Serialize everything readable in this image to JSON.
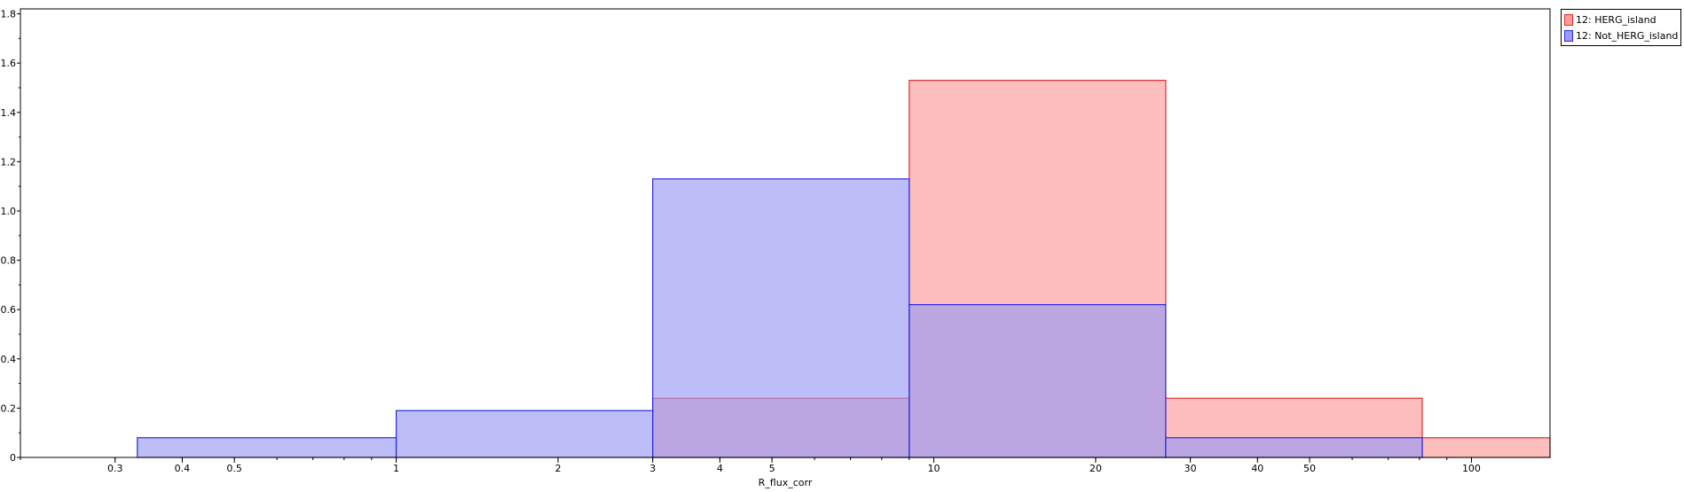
{
  "chart_data": {
    "type": "bar",
    "xlabel": "R_flux_corr",
    "ylabel": "",
    "x_scale": "log",
    "xlim": [
      0.2,
      140
    ],
    "ylim": [
      0,
      1.82
    ],
    "grid": false,
    "legend_position": "top-right outside",
    "y_ticks": [
      0,
      0.2,
      0.4,
      0.6,
      0.8,
      1.0,
      1.2,
      1.4,
      1.6,
      1.8
    ],
    "y_tick_labels": [
      "0",
      "0.2",
      "0.4",
      "0.6",
      "0.8",
      "1.0",
      "1.2",
      "1.4",
      "1.6",
      "1.8"
    ],
    "x_ticks": [
      0.3,
      0.4,
      0.5,
      1,
      2,
      3,
      4,
      5,
      10,
      20,
      30,
      40,
      50,
      100
    ],
    "x_tick_labels": [
      "0.3",
      "0.4",
      "0.5",
      "1",
      "2",
      "3",
      "4",
      "5",
      "10",
      "20",
      "30",
      "40",
      "50",
      "100"
    ],
    "bin_edges": [
      0.33,
      1.0,
      3.0,
      9.0,
      27.0,
      81.0,
      140
    ],
    "series": [
      {
        "name": "12: HERG_island",
        "fill": "#fa9a9a",
        "stroke": "#e03030",
        "bins": [
          {
            "x0": 3.0,
            "x1": 9.0,
            "y": 0.24
          },
          {
            "x0": 9.0,
            "x1": 27.0,
            "y": 1.53
          },
          {
            "x0": 27.0,
            "x1": 81.0,
            "y": 0.24
          },
          {
            "x0": 81.0,
            "x1": 140,
            "y": 0.08
          }
        ]
      },
      {
        "name": "12: Not_HERG_island",
        "fill": "#9a9af5",
        "stroke": "#2a2ae0",
        "bins": [
          {
            "x0": 0.33,
            "x1": 1.0,
            "y": 0.08
          },
          {
            "x0": 1.0,
            "x1": 3.0,
            "y": 0.19
          },
          {
            "x0": 3.0,
            "x1": 9.0,
            "y": 1.13
          },
          {
            "x0": 9.0,
            "x1": 27.0,
            "y": 0.62
          },
          {
            "x0": 27.0,
            "x1": 81.0,
            "y": 0.08
          }
        ]
      }
    ]
  }
}
